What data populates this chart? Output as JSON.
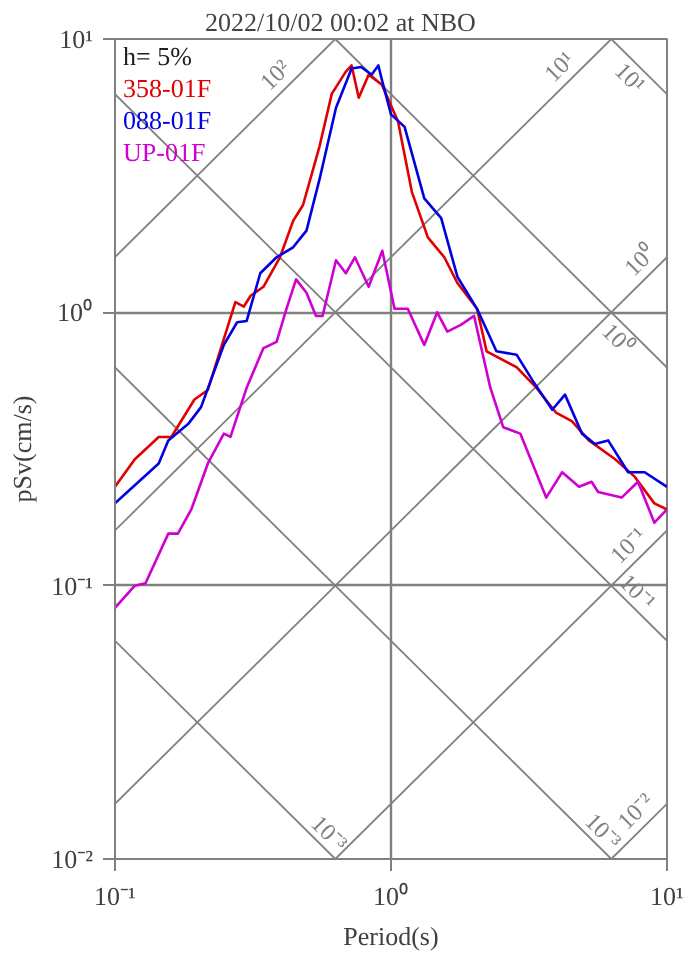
{
  "chart_data": {
    "type": "line",
    "title": "2022/10/02 00:02 at NBO",
    "xlabel": "Period(s)",
    "ylabel": "pSv(cm/s)",
    "log": "xy",
    "grid": true,
    "legend": "top left",
    "xlim": [
      0.1,
      10
    ],
    "ylim": [
      0.01,
      10
    ],
    "xticks": [
      {
        "value": 0.1,
        "label": "10⁻¹"
      },
      {
        "value": 1,
        "label": "10⁰"
      },
      {
        "value": 10,
        "label": "10¹"
      }
    ],
    "yticks": [
      {
        "value": 0.01,
        "label": "10⁻²"
      },
      {
        "value": 0.1,
        "label": "10⁻¹"
      },
      {
        "value": 1,
        "label": "10⁰"
      },
      {
        "value": 10,
        "label": "10¹"
      }
    ],
    "series": [
      {
        "color": "#808080",
        "x": [
          0.1,
          0.6283
        ],
        "values": [
          1.592,
          10
        ]
      },
      {
        "color": "#808080",
        "x": [
          0.1,
          6.283
        ],
        "values": [
          0.1592,
          10
        ]
      },
      {
        "color": "#808080",
        "x": [
          0.1,
          10
        ],
        "values": [
          0.01592,
          1.592
        ]
      },
      {
        "color": "#808080",
        "x": [
          0.6283,
          10
        ],
        "values": [
          0.01,
          0.1592
        ]
      },
      {
        "color": "#808080",
        "x": [
          6.283,
          10
        ],
        "values": [
          0.01,
          0.01592
        ]
      },
      {
        "color": "#808080",
        "x": [
          0.1,
          0.6283
        ],
        "values": [
          0.06283,
          0.01
        ]
      },
      {
        "color": "#808080",
        "x": [
          0.1,
          6.283
        ],
        "values": [
          0.6283,
          0.01
        ]
      },
      {
        "color": "#808080",
        "x": [
          0.1,
          10
        ],
        "values": [
          6.283,
          0.06283
        ]
      },
      {
        "color": "#808080",
        "x": [
          0.6283,
          10
        ],
        "values": [
          10,
          0.6283
        ]
      },
      {
        "color": "#808080",
        "x": [
          6.283,
          10
        ],
        "values": [
          10,
          6.283
        ]
      },
      {
        "name": "358-01F",
        "color": "#e00000",
        "x": [
          0.1,
          0.118,
          0.144,
          0.16,
          0.194,
          0.217,
          0.248,
          0.273,
          0.293,
          0.31,
          0.345,
          0.396,
          0.442,
          0.48,
          0.551,
          0.61,
          0.686,
          0.72,
          0.764,
          0.83,
          0.927,
          1.06,
          1.19,
          1.36,
          1.56,
          1.74,
          2.05,
          2.22,
          2.85,
          3.36,
          3.96,
          4.52,
          5.21,
          6.49,
          7.65,
          9.0,
          10
        ],
        "values": [
          0.23,
          0.29,
          0.35,
          0.35,
          0.48,
          0.52,
          0.8,
          1.09,
          1.05,
          1.15,
          1.24,
          1.59,
          2.16,
          2.47,
          4.05,
          6.3,
          7.6,
          8.0,
          6.1,
          7.4,
          6.8,
          5.0,
          2.76,
          1.88,
          1.59,
          1.28,
          1.03,
          0.72,
          0.63,
          0.53,
          0.43,
          0.4,
          0.34,
          0.29,
          0.25,
          0.2,
          0.19
        ]
      },
      {
        "name": "088-01F",
        "color": "#0000e0",
        "x": [
          0.1,
          0.144,
          0.156,
          0.184,
          0.205,
          0.248,
          0.277,
          0.3,
          0.336,
          0.385,
          0.442,
          0.494,
          0.551,
          0.632,
          0.72,
          0.78,
          0.85,
          0.9,
          0.93,
          1.0,
          1.12,
          1.32,
          1.52,
          1.74,
          2.05,
          2.41,
          2.85,
          3.27,
          3.84,
          4.27,
          4.92,
          5.48,
          6.12,
          7.23,
          8.3,
          10
        ],
        "values": [
          0.2,
          0.28,
          0.34,
          0.39,
          0.45,
          0.76,
          0.92,
          0.93,
          1.39,
          1.59,
          1.73,
          1.99,
          3.07,
          5.6,
          7.8,
          7.9,
          7.4,
          8.0,
          7.0,
          5.3,
          4.77,
          2.61,
          2.21,
          1.35,
          1.03,
          0.72,
          0.7,
          0.56,
          0.44,
          0.5,
          0.36,
          0.33,
          0.34,
          0.26,
          0.26,
          0.23
        ]
      },
      {
        "name": "UP-01F",
        "color": "#d000d0",
        "x": [
          0.1,
          0.118,
          0.129,
          0.156,
          0.169,
          0.189,
          0.217,
          0.248,
          0.262,
          0.3,
          0.345,
          0.385,
          0.418,
          0.453,
          0.494,
          0.535,
          0.565,
          0.632,
          0.686,
          0.74,
          0.83,
          0.93,
          1.03,
          1.15,
          1.32,
          1.47,
          1.6,
          1.79,
          2.0,
          2.29,
          2.55,
          2.94,
          3.65,
          4.17,
          4.8,
          5.33,
          5.63,
          6.85,
          7.85,
          9.0,
          10
        ],
        "values": [
          0.083,
          0.1,
          0.102,
          0.155,
          0.155,
          0.19,
          0.28,
          0.36,
          0.35,
          0.53,
          0.74,
          0.78,
          1.03,
          1.32,
          1.18,
          0.97,
          0.97,
          1.55,
          1.39,
          1.59,
          1.24,
          1.68,
          1.03,
          1.03,
          0.76,
          1.0,
          0.85,
          0.9,
          0.97,
          0.53,
          0.38,
          0.36,
          0.21,
          0.26,
          0.23,
          0.24,
          0.22,
          0.21,
          0.24,
          0.17,
          0.19
        ]
      }
    ],
    "annotations": [
      "h= 5%",
      {
        "text": "10²",
        "x": 0.42,
        "y": 6.68
      },
      {
        "text": "10¹",
        "x": 4.5,
        "y": 7.16
      },
      {
        "text": "10¹",
        "x": 8.0,
        "y": 7.85
      },
      {
        "text": "10⁰",
        "x": 8.8,
        "y": 1.4
      },
      {
        "text": "10⁰",
        "x": 7.2,
        "y": 0.873
      },
      {
        "text": "10⁻¹",
        "x": 8.0,
        "y": 0.127
      },
      {
        "text": "10⁻¹",
        "x": 7.2,
        "y": 0.0873
      },
      {
        "text": "10⁻³",
        "x": 0.55,
        "y": 0.01142
      },
      {
        "text": "10⁻³",
        "x": 5.4,
        "y": 0.01164
      },
      {
        "text": "10⁻²",
        "x": 8.5,
        "y": 0.01353
      }
    ]
  }
}
